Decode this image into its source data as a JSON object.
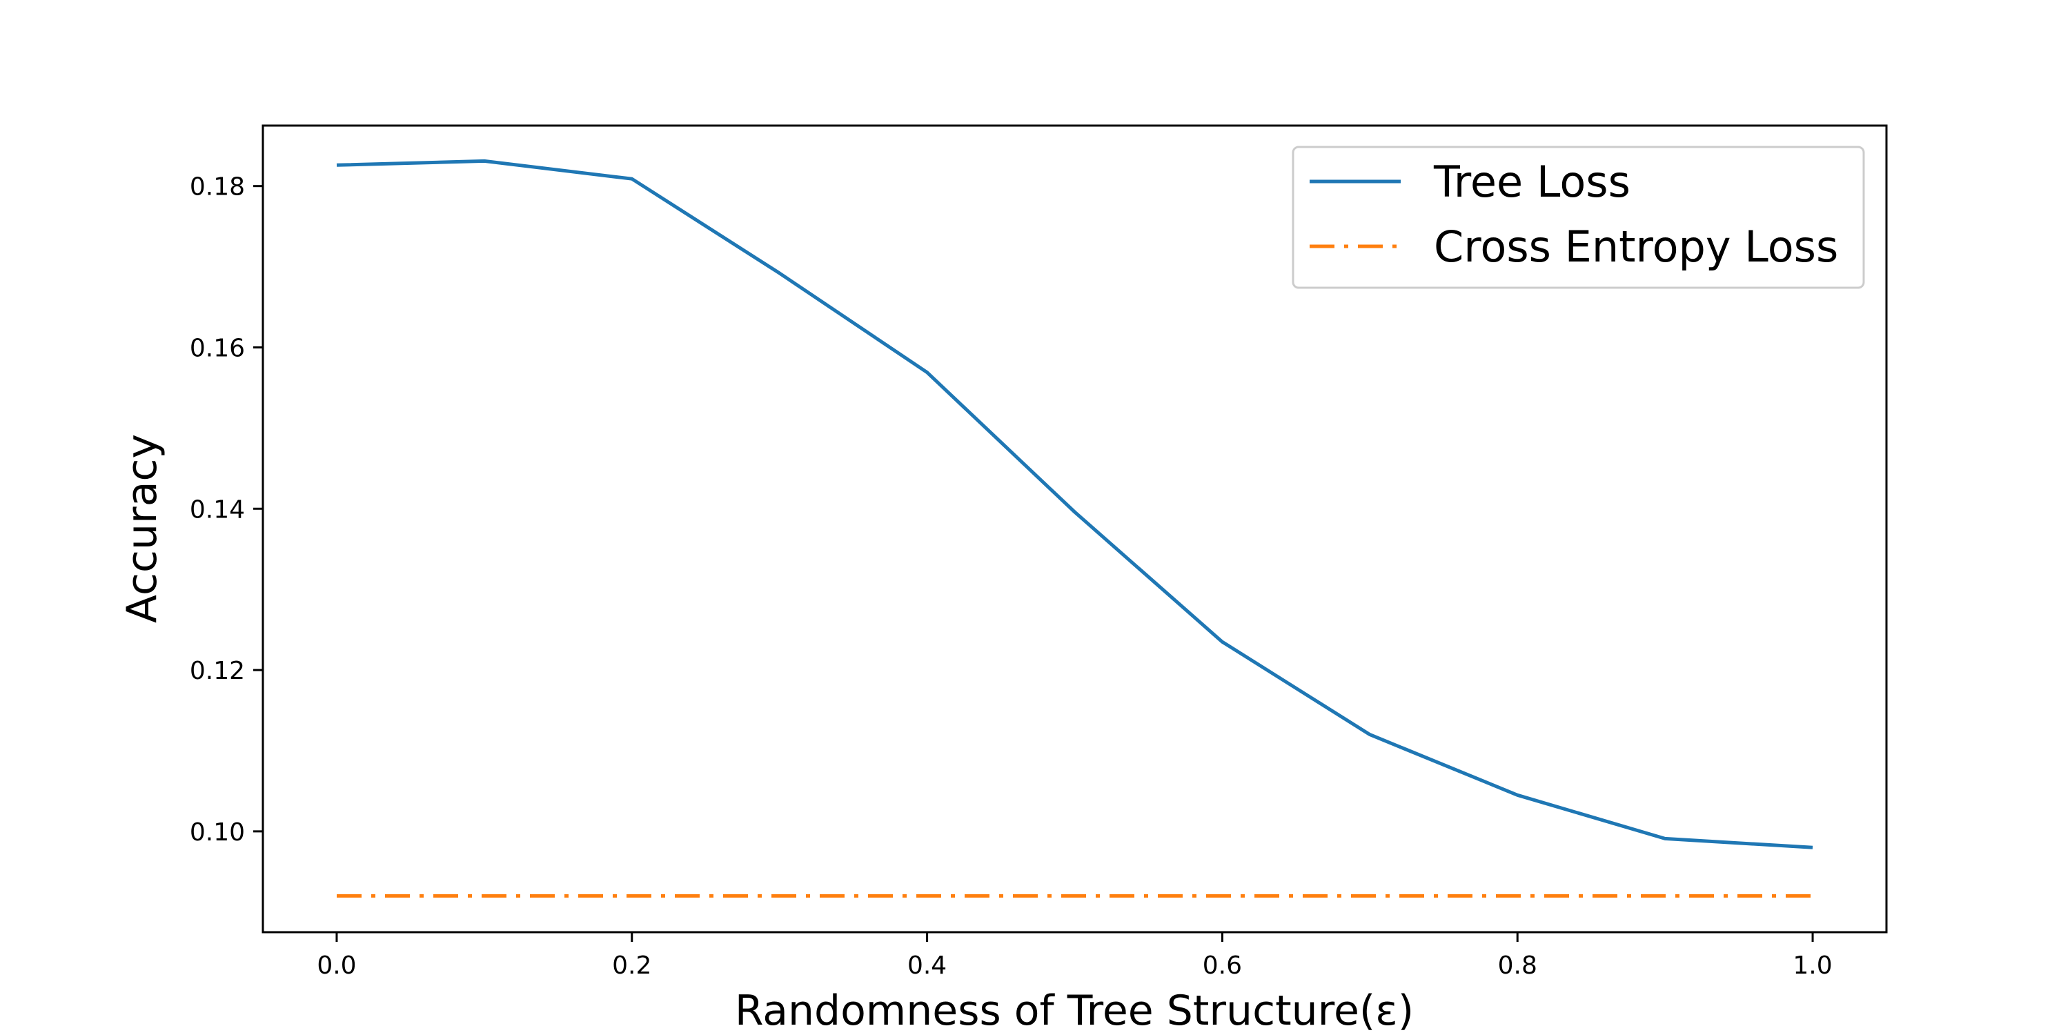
{
  "chart_data": {
    "type": "line",
    "title": "",
    "xlabel": "Randomness of Tree Structure(ε)",
    "ylabel": "Accuracy",
    "xlim": [
      -0.05,
      1.05
    ],
    "ylim": [
      0.0875,
      0.1875
    ],
    "xticks": [
      "0.0",
      "0.2",
      "0.4",
      "0.6",
      "0.8",
      "1.0"
    ],
    "yticks": [
      "0.10",
      "0.12",
      "0.14",
      "0.16",
      "0.18"
    ],
    "grid": false,
    "legend_position": "top-right",
    "x": [
      0.0,
      0.1,
      0.2,
      0.3,
      0.4,
      0.5,
      0.6,
      0.7,
      0.8,
      0.9,
      1.0
    ],
    "series": [
      {
        "name": "Tree Loss",
        "color": "#1f77b4",
        "style": "solid",
        "values": [
          0.1826,
          0.1831,
          0.1809,
          0.1692,
          0.1569,
          0.1396,
          0.1235,
          0.112,
          0.1045,
          0.0991,
          0.098
        ]
      },
      {
        "name": "Cross Entropy Loss",
        "color": "#ff7f0e",
        "style": "dashdot",
        "values": [
          0.092,
          0.092,
          0.092,
          0.092,
          0.092,
          0.092,
          0.092,
          0.092,
          0.092,
          0.092,
          0.092
        ]
      }
    ]
  }
}
